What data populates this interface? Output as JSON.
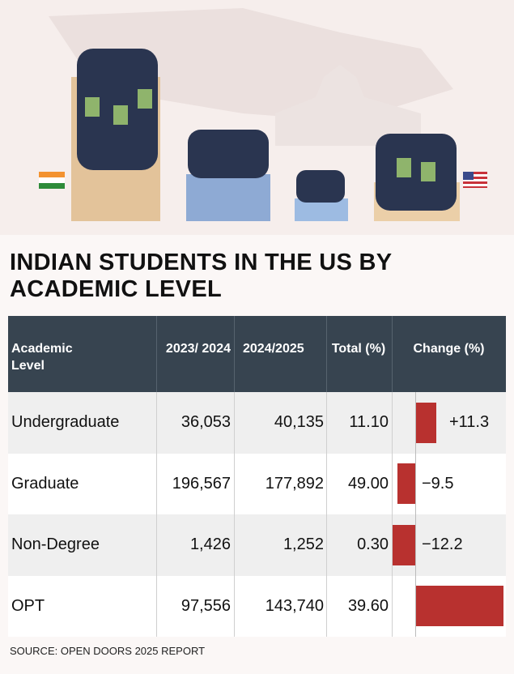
{
  "header": {
    "title": "INDIAN STUDENTS IN THE US BY ACADEMIC LEVEL"
  },
  "table": {
    "columns": [
      "Academic Level",
      "2023/ 2024",
      "2024/2025",
      "Total (%)",
      "Change (%)"
    ],
    "rows": [
      [
        "Undergraduate",
        "36,053",
        "40,135",
        "11.10"
      ],
      [
        "Graduate",
        "196,567",
        "177,892",
        "49.00"
      ],
      [
        "Non-Degree",
        "1,426",
        "1,252",
        "0.30"
      ],
      [
        "OPT",
        "97,556",
        "143,740",
        "39.60"
      ]
    ],
    "change": {
      "values": [
        11.3,
        -9.5,
        -12.2,
        47.3
      ],
      "value_labels": [
        "+11.3",
        "−9.5",
        "−12.2",
        null
      ],
      "color": "#b8312f"
    }
  },
  "footer": {
    "source": "SOURCE: OPEN DOORS 2025 REPORT"
  }
}
